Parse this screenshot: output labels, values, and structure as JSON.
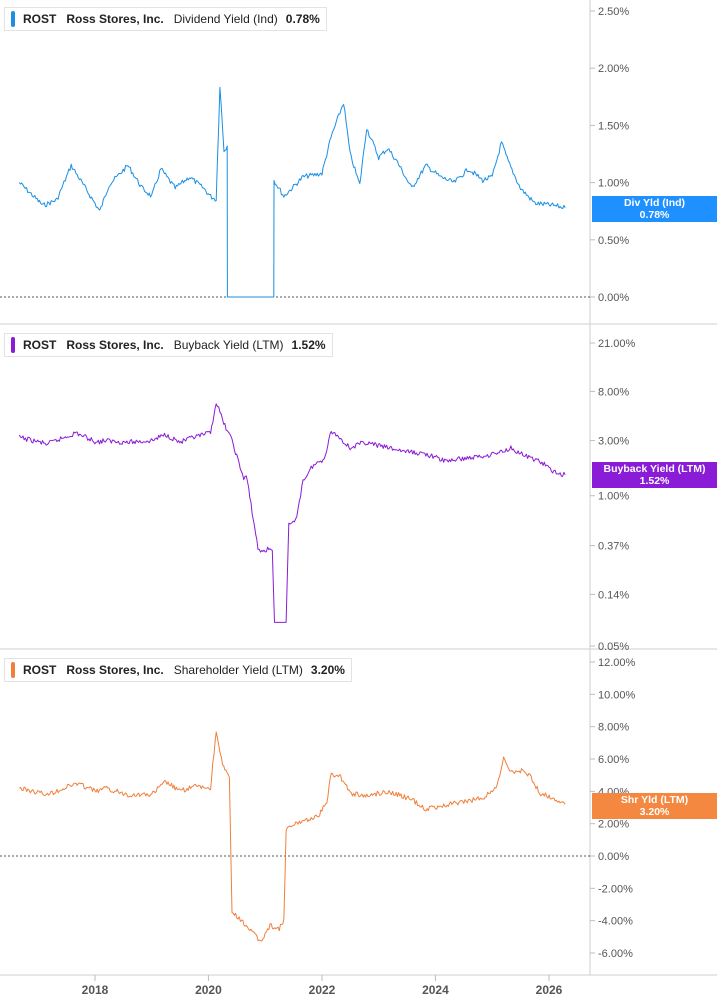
{
  "panels": [
    {
      "ticker": "ROST",
      "company": "Ross Stores, Inc.",
      "metric": "Dividend Yield (Ind)",
      "value": "0.78%",
      "tag_label": "Div Yld (Ind)",
      "tag_value": "0.78%",
      "color": "#1a8fe3",
      "tag_color": "#1e90ff"
    },
    {
      "ticker": "ROST",
      "company": "Ross Stores, Inc.",
      "metric": "Buyback Yield (LTM)",
      "value": "1.52%",
      "tag_label": "Buyback Yield (LTM)",
      "tag_value": "1.52%",
      "color": "#8a1bd6",
      "tag_color": "#8a1bd6"
    },
    {
      "ticker": "ROST",
      "company": "Ross Stores, Inc.",
      "metric": "Shareholder Yield (LTM)",
      "value": "3.20%",
      "tag_label": "Shr Yld (LTM)",
      "tag_value": "3.20%",
      "color": "#f07f3c",
      "tag_color": "#f58840"
    }
  ],
  "chart_data": [
    {
      "type": "line",
      "title": "ROST Ross Stores, Inc. Dividend Yield (Ind) 0.78%",
      "y_scale": "linear",
      "ylim": [
        0,
        2.6
      ],
      "y_ticks": [
        0,
        0.5,
        1.0,
        1.5,
        2.0,
        2.5
      ],
      "y_tick_labels": [
        "0.00%",
        "0.50%",
        "1.00%",
        "1.50%",
        "2.00%",
        "2.50%"
      ],
      "zero_line": true,
      "series": [
        {
          "x": [
            "2016-09-01",
            "2017-02-01",
            "2017-05-01",
            "2017-08-01",
            "2017-11-01",
            "2018-02-01",
            "2018-04-01",
            "2018-08-01",
            "2018-11-01",
            "2019-01-01",
            "2019-03-01",
            "2019-06-01",
            "2019-09-01",
            "2019-12-01",
            "2020-01-15",
            "2020-02-20",
            "2020-03-15",
            "2020-04-10",
            "2020-05-01",
            "2020-05-02",
            "2021-02-25",
            "2021-02-26",
            "2021-05-01",
            "2021-09-01",
            "2022-01-01",
            "2022-03-01",
            "2022-05-20",
            "2022-07-01",
            "2022-09-01",
            "2022-10-15",
            "2023-01-01",
            "2023-03-01",
            "2023-05-01",
            "2023-08-01",
            "2023-11-01",
            "2024-02-01",
            "2024-05-01",
            "2024-08-01",
            "2024-11-01",
            "2025-01-01",
            "2025-03-01",
            "2025-04-15",
            "2025-07-01",
            "2025-10-01",
            "2026-02-01",
            "2026-04-15"
          ],
          "y": [
            1.0,
            0.8,
            0.85,
            1.15,
            0.95,
            0.75,
            0.98,
            1.15,
            0.95,
            0.88,
            1.12,
            0.95,
            1.05,
            0.95,
            0.88,
            0.85,
            1.85,
            1.28,
            1.32,
            0,
            0,
            1.02,
            0.88,
            1.05,
            1.08,
            1.4,
            1.7,
            1.25,
            0.98,
            1.48,
            1.22,
            1.3,
            1.18,
            0.95,
            1.15,
            1.05,
            1.0,
            1.12,
            1.02,
            1.05,
            1.35,
            1.18,
            0.95,
            0.82,
            0.8,
            0.78
          ]
        }
      ]
    },
    {
      "type": "line",
      "title": "ROST Ross Stores, Inc. Buyback Yield (LTM) 1.52%",
      "y_scale": "log",
      "ylim": [
        0.05,
        30
      ],
      "y_ticks": [
        0.05,
        0.14,
        0.37,
        1.0,
        3.0,
        8.0,
        21.0
      ],
      "y_tick_labels": [
        "0.05%",
        "0.14%",
        "0.37%",
        "1.00%",
        "3.00%",
        "8.00%",
        "21.00%"
      ],
      "series": [
        {
          "x": [
            "2016-09-01",
            "2017-03-01",
            "2017-09-01",
            "2018-01-15",
            "2018-03-01",
            "2018-08-01",
            "2019-01-01",
            "2019-04-01",
            "2019-07-01",
            "2019-10-01",
            "2020-01-15",
            "2020-02-20",
            "2020-04-01",
            "2020-06-01",
            "2020-08-15",
            "2020-09-01",
            "2020-11-15",
            "2020-12-01",
            "2021-02-15",
            "2021-03-01",
            "2021-05-15",
            "2021-06-01",
            "2021-07-15",
            "2021-09-01",
            "2021-11-01",
            "2022-01-15",
            "2022-03-01",
            "2022-04-01",
            "2022-07-01",
            "2022-10-01",
            "2023-03-01",
            "2023-07-01",
            "2023-11-01",
            "2024-03-01",
            "2024-07-01",
            "2024-11-01",
            "2025-03-01",
            "2025-05-01",
            "2025-08-01",
            "2025-11-01",
            "2026-02-01",
            "2026-04-15"
          ],
          "y": [
            3.2,
            2.8,
            3.5,
            2.9,
            3.0,
            2.9,
            3.0,
            3.4,
            2.9,
            3.2,
            3.5,
            6.5,
            4.5,
            3.0,
            1.4,
            1.5,
            0.35,
            0.33,
            0.35,
            0.08,
            0.08,
            0.55,
            0.6,
            1.35,
            1.8,
            2.1,
            3.6,
            3.4,
            2.6,
            2.9,
            2.6,
            2.4,
            2.3,
            2.0,
            2.1,
            2.2,
            2.4,
            2.6,
            2.2,
            2.0,
            1.6,
            1.52
          ]
        }
      ]
    },
    {
      "type": "line",
      "title": "ROST Ross Stores, Inc. Shareholder Yield (LTM) 3.20%",
      "y_scale": "linear",
      "ylim": [
        -7,
        13
      ],
      "y_ticks": [
        -6,
        -4,
        -2,
        0,
        2,
        4,
        6,
        8,
        10,
        12
      ],
      "y_tick_labels": [
        "-6.00%",
        "-4.00%",
        "-2.00%",
        "0.00%",
        "2.00%",
        "4.00%",
        "6.00%",
        "8.00%",
        "10.00%",
        "12.00%"
      ],
      "zero_line": true,
      "series": [
        {
          "x": [
            "2016-09-01",
            "2017-03-01",
            "2017-09-01",
            "2018-01-15",
            "2018-03-01",
            "2018-08-01",
            "2019-01-01",
            "2019-04-01",
            "2019-07-01",
            "2019-10-01",
            "2020-01-15",
            "2020-02-20",
            "2020-04-01",
            "2020-05-15",
            "2020-06-01",
            "2020-09-01",
            "2020-12-01",
            "2021-02-01",
            "2021-04-01",
            "2021-05-01",
            "2021-05-15",
            "2021-07-01",
            "2021-09-01",
            "2021-12-01",
            "2022-02-01",
            "2022-03-01",
            "2022-05-01",
            "2022-07-01",
            "2022-10-01",
            "2023-03-01",
            "2023-08-01",
            "2023-11-01",
            "2024-04-01",
            "2024-08-01",
            "2024-11-01",
            "2025-02-01",
            "2025-03-15",
            "2025-05-01",
            "2025-07-01",
            "2025-09-01",
            "2025-11-01",
            "2026-02-01",
            "2026-04-15"
          ],
          "y": [
            4.2,
            3.8,
            4.5,
            4.0,
            4.2,
            3.8,
            3.8,
            4.6,
            4.0,
            4.3,
            4.2,
            7.8,
            5.6,
            4.8,
            -3.5,
            -4.3,
            -5.3,
            -4.3,
            -4.5,
            -4.0,
            1.6,
            1.9,
            2.2,
            2.4,
            3.3,
            5.1,
            4.9,
            3.9,
            3.7,
            4.0,
            3.5,
            2.9,
            3.2,
            3.4,
            3.6,
            4.3,
            6.0,
            5.2,
            5.3,
            5.0,
            3.9,
            3.6,
            3.2
          ]
        }
      ]
    }
  ],
  "x_axis": {
    "ticks": [
      "2018-01-01",
      "2020-01-01",
      "2022-01-01",
      "2024-01-01",
      "2026-01-01"
    ],
    "tick_labels": [
      "2018",
      "2020",
      "2022",
      "2024",
      "2026"
    ]
  }
}
